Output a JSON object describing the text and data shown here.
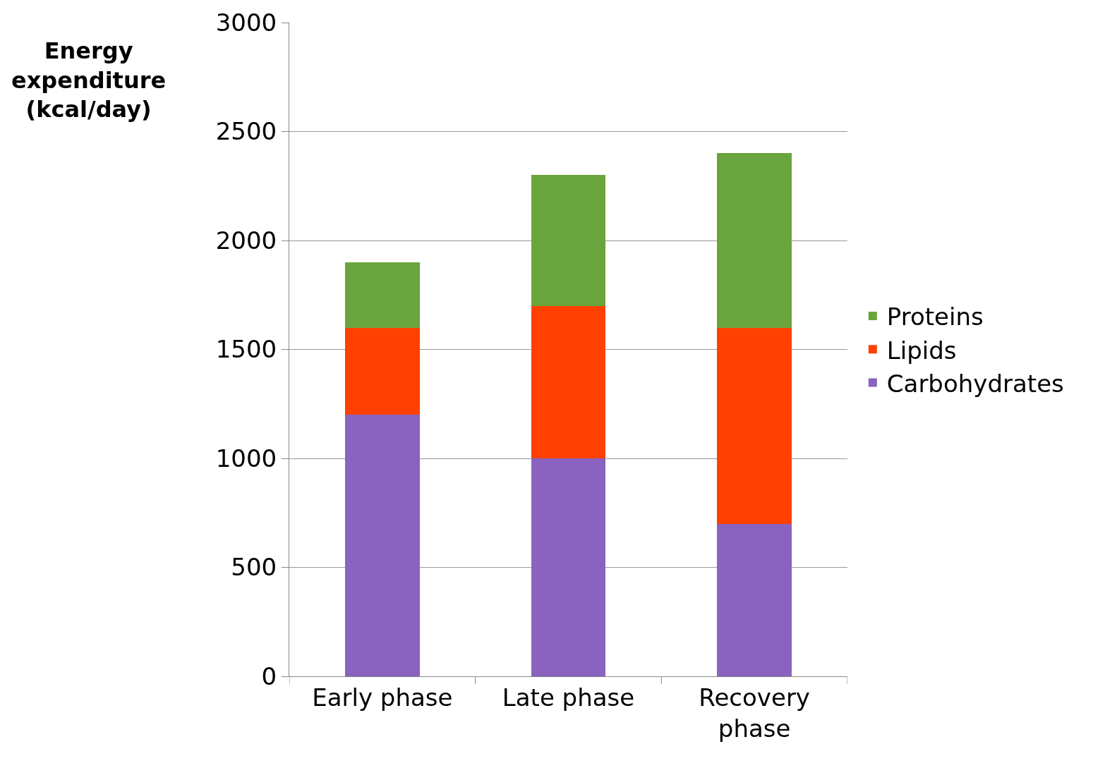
{
  "chart_data": {
    "type": "bar",
    "stacked": true,
    "ylabel": "Energy expenditure (kcal/day)",
    "categories": [
      "Early phase",
      "Late phase",
      "Recovery phase"
    ],
    "series": [
      {
        "name": "Carbohydrates",
        "color": "#8a62c0",
        "values": [
          1200,
          1000,
          700
        ]
      },
      {
        "name": "Lipids",
        "color": "#ff4000",
        "values": [
          400,
          700,
          900
        ]
      },
      {
        "name": "Proteins",
        "color": "#6aa43c",
        "values": [
          300,
          600,
          800
        ]
      }
    ],
    "ylim": [
      0,
      3000
    ],
    "yticks": [
      0,
      500,
      1000,
      1500,
      2000,
      2500,
      3000
    ],
    "grid": "y",
    "legend": "right"
  }
}
